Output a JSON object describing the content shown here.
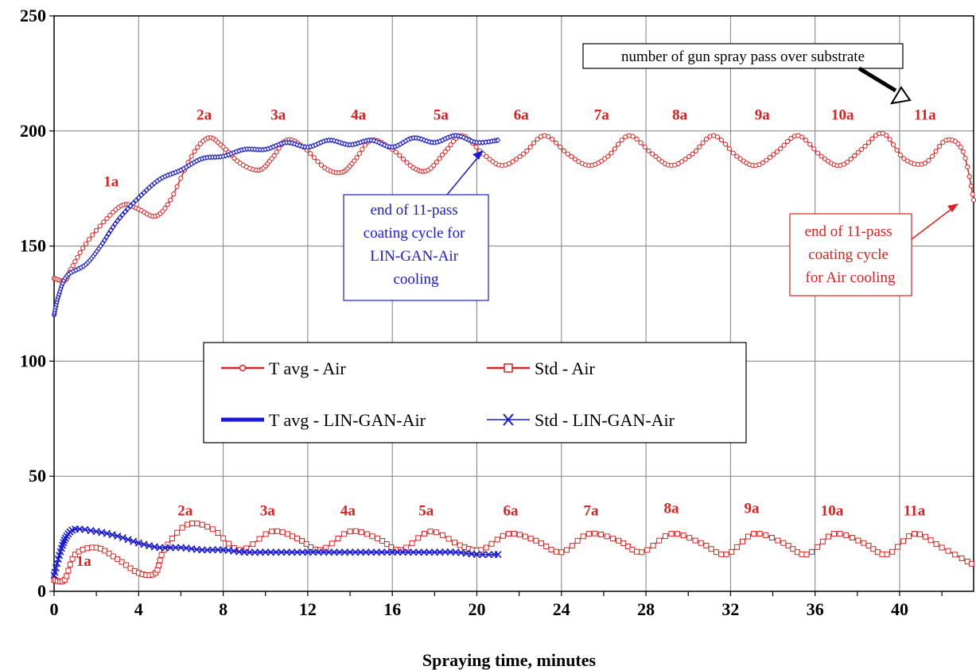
{
  "chart_data": {
    "type": "line",
    "xlabel": "Spraying time, minutes",
    "ylabel": "",
    "xlim": [
      0,
      43.5
    ],
    "ylim": [
      0,
      250
    ],
    "x_ticks": [
      "0",
      "4",
      "8",
      "12",
      "16",
      "20",
      "24",
      "28",
      "32",
      "36",
      "40"
    ],
    "y_ticks": [
      "0",
      "50",
      "100",
      "150",
      "200",
      "250"
    ],
    "grid": true,
    "legend_position": "center-left",
    "series": [
      {
        "name": "T avg - Air",
        "color": "#e02020",
        "marker": "circle",
        "x": [
          0,
          0.5,
          0.8,
          1.5,
          2.5,
          3.3,
          4.0,
          4.8,
          5.5,
          6.5,
          7.3,
          8.0,
          8.8,
          9.7,
          10.3,
          11.0,
          11.8,
          12.8,
          13.6,
          14.2,
          15.0,
          16.0,
          17.0,
          17.7,
          18.5,
          19.3,
          20.3,
          21.2,
          22.2,
          23.2,
          24.3,
          25.3,
          26.2,
          27.2,
          28.3,
          29.2,
          30.2,
          31.2,
          32.3,
          33.2,
          34.2,
          35.2,
          36.3,
          37.2,
          38.2,
          39.2,
          40.2,
          41.2,
          42.2,
          43.0,
          43.5
        ],
        "y": [
          136,
          135,
          140,
          151,
          162,
          168,
          166,
          163,
          170,
          189,
          197,
          193,
          186,
          183,
          188,
          196,
          193,
          184,
          182,
          187,
          196,
          192,
          184,
          183,
          191,
          198,
          190,
          185,
          190,
          198,
          190,
          185,
          189,
          198,
          190,
          185,
          190,
          198,
          189,
          185,
          191,
          198,
          189,
          185,
          192,
          199,
          188,
          186,
          196,
          191,
          170
        ]
      },
      {
        "name": "Std - Air",
        "color": "#e02020",
        "marker": "square",
        "x": [
          0,
          0.5,
          1.0,
          2.0,
          3.0,
          4.0,
          4.8,
          5.2,
          6.3,
          7.5,
          8.8,
          10.3,
          11.5,
          12.6,
          14.0,
          15.3,
          16.4,
          17.8,
          19.2,
          20.2,
          21.5,
          22.8,
          24.0,
          25.3,
          26.7,
          27.8,
          29.2,
          30.6,
          31.8,
          33.1,
          34.5,
          35.6,
          36.9,
          38.3,
          39.4,
          40.7,
          42.0,
          43.4
        ],
        "y": [
          5,
          5,
          16,
          19,
          14,
          8,
          8,
          18,
          29,
          27,
          18,
          26,
          23,
          18,
          26,
          23,
          18,
          26,
          20,
          18,
          25,
          22,
          17,
          25,
          22,
          17,
          25,
          21,
          16,
          25,
          21,
          16,
          25,
          21,
          16,
          25,
          19,
          12
        ]
      },
      {
        "name": "T avg - LIN-GAN-Air",
        "color": "#1a1ad6",
        "marker": "diamond",
        "x": [
          0,
          0.2,
          0.6,
          1.5,
          2.2,
          3.0,
          4.0,
          5.0,
          6.0,
          7.0,
          8.0,
          9.0,
          10.0,
          11.0,
          12.0,
          13.0,
          14.0,
          15.0,
          16.0,
          17.0,
          18.0,
          19.0,
          20.0,
          21.0
        ],
        "y": [
          120,
          128,
          137,
          142,
          150,
          161,
          171,
          179,
          183,
          188,
          189,
          192,
          192,
          195,
          193,
          196,
          194,
          196,
          193,
          197,
          195,
          198,
          195,
          196
        ]
      },
      {
        "name": "Std - LIN-GAN-Air",
        "color": "#1a1ad6",
        "marker": "x",
        "x": [
          0,
          0.2,
          0.4,
          0.6,
          1.0,
          2.0,
          3.0,
          4.0,
          5.0,
          6.0,
          7.0,
          8.0,
          9.0,
          10.0,
          11.0,
          12.0,
          13.0,
          14.0,
          15.0,
          16.0,
          17.0,
          18.0,
          19.0,
          20.0,
          21.0
        ],
        "y": [
          7,
          14,
          20,
          24,
          27,
          26,
          24,
          21,
          19,
          19,
          18,
          18,
          17,
          17,
          17,
          17,
          17,
          17,
          17,
          17,
          17,
          17,
          17,
          16,
          16
        ]
      }
    ],
    "pass_labels_upper": [
      {
        "text": "1a",
        "x": 2.7,
        "y": 176
      },
      {
        "text": "2a",
        "x": 7.1,
        "y": 205
      },
      {
        "text": "3a",
        "x": 10.6,
        "y": 205
      },
      {
        "text": "4a",
        "x": 14.4,
        "y": 205
      },
      {
        "text": "5a",
        "x": 18.3,
        "y": 205
      },
      {
        "text": "6a",
        "x": 22.1,
        "y": 205
      },
      {
        "text": "7a",
        "x": 25.9,
        "y": 205
      },
      {
        "text": "8a",
        "x": 29.6,
        "y": 205
      },
      {
        "text": "9a",
        "x": 33.5,
        "y": 205
      },
      {
        "text": "10a",
        "x": 37.3,
        "y": 205
      },
      {
        "text": "11a",
        "x": 41.2,
        "y": 205
      }
    ],
    "pass_labels_lower": [
      {
        "text": "1a",
        "x": 1.4,
        "y": 11
      },
      {
        "text": "2a",
        "x": 6.2,
        "y": 33
      },
      {
        "text": "3a",
        "x": 10.1,
        "y": 33
      },
      {
        "text": "4a",
        "x": 13.9,
        "y": 33
      },
      {
        "text": "5a",
        "x": 17.6,
        "y": 33
      },
      {
        "text": "6a",
        "x": 21.6,
        "y": 33
      },
      {
        "text": "7a",
        "x": 25.4,
        "y": 33
      },
      {
        "text": "8a",
        "x": 29.2,
        "y": 34
      },
      {
        "text": "9a",
        "x": 33.0,
        "y": 34
      },
      {
        "text": "10a",
        "x": 36.8,
        "y": 33
      },
      {
        "text": "11a",
        "x": 40.7,
        "y": 33
      }
    ],
    "annotations": {
      "top_box": "number of gun spray pass over substrate",
      "blue_box": [
        "end of 11-pass",
        "coating cycle for",
        "LIN-GAN-Air",
        "cooling"
      ],
      "red_box": [
        "end of 11-pass",
        "coating cycle",
        "for Air cooling"
      ]
    }
  }
}
